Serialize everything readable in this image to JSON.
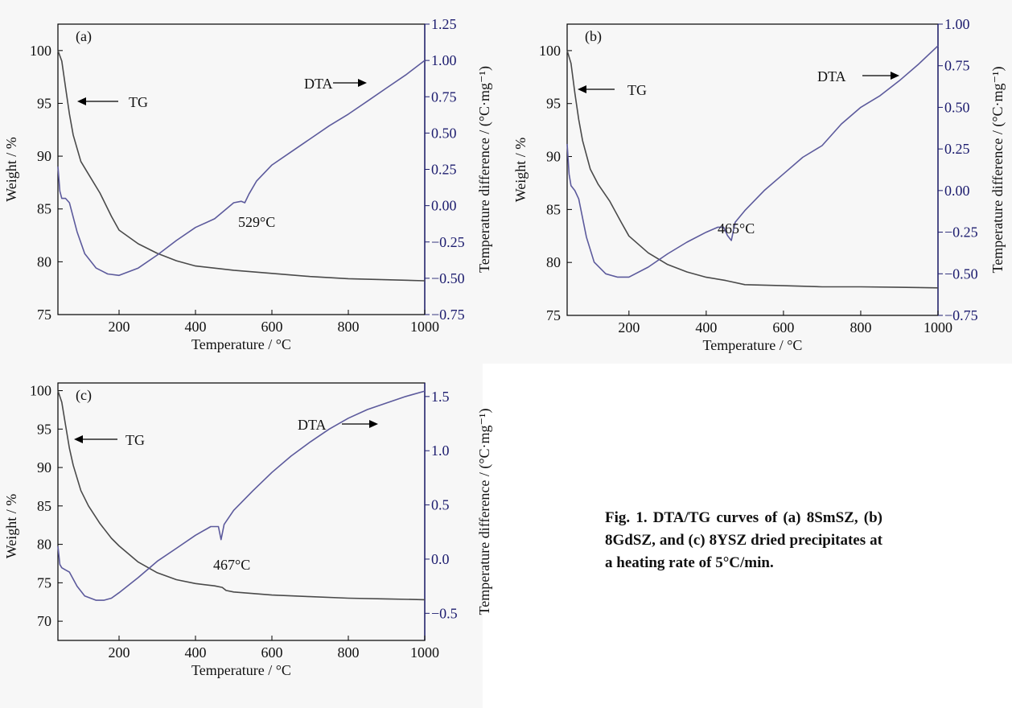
{
  "caption": "Fig. 1.   DTA/TG curves of (a) 8SmSZ, (b) 8GdSZ, and (c) 8YSZ dried precipitates at a heating rate of 5°C/min.",
  "colors": {
    "tg": "#4a4a4a",
    "dta": "#5c5a9c",
    "axis": "#000000",
    "axis_right": "#1c1c6e"
  },
  "chart_data": [
    {
      "type": "line",
      "panel_label": "(a)",
      "xlabel": "Temperature / °C",
      "ylabel": "Weight / %",
      "ylabel_right": "Temperature difference / (°C·mg⁻¹)",
      "xlim": [
        40,
        1000
      ],
      "ylim": [
        75,
        102.5
      ],
      "ylim_right": [
        -0.75,
        1.25
      ],
      "x_ticks": [
        "200",
        "400",
        "600",
        "800",
        "1000"
      ],
      "y_ticks": [
        "75",
        "80",
        "85",
        "90",
        "95",
        "100"
      ],
      "y_right_ticks": [
        "−0.75",
        "−0.50",
        "−0.25",
        "0.00",
        "0.25",
        "0.50",
        "0.75",
        "1.00",
        "1.25"
      ],
      "series": [
        {
          "name": "TG",
          "axis": "left",
          "x": [
            40,
            50,
            60,
            70,
            80,
            100,
            120,
            150,
            180,
            200,
            250,
            300,
            350,
            400,
            500,
            600,
            700,
            800,
            900,
            1000
          ],
          "y": [
            100,
            99,
            96.5,
            94,
            92,
            89.5,
            88.3,
            86.5,
            84.3,
            83,
            81.7,
            80.8,
            80.1,
            79.6,
            79.2,
            78.9,
            78.6,
            78.4,
            78.3,
            78.2
          ]
        },
        {
          "name": "DTA",
          "axis": "right",
          "x": [
            40,
            45,
            50,
            60,
            70,
            90,
            110,
            140,
            170,
            200,
            250,
            300,
            350,
            400,
            450,
            500,
            520,
            529,
            540,
            560,
            600,
            650,
            700,
            750,
            800,
            850,
            900,
            950,
            1000
          ],
          "y": [
            0.27,
            0.1,
            0.05,
            0.05,
            0.02,
            -0.18,
            -0.33,
            -0.43,
            -0.47,
            -0.48,
            -0.43,
            -0.34,
            -0.24,
            -0.15,
            -0.09,
            0.02,
            0.03,
            0.02,
            0.08,
            0.17,
            0.28,
            0.37,
            0.46,
            0.55,
            0.63,
            0.72,
            0.81,
            0.9,
            1.0
          ]
        }
      ],
      "annotations": [
        {
          "text": "TG",
          "arrow": "left"
        },
        {
          "text": "DTA",
          "arrow": "right"
        },
        {
          "text": "529°C"
        }
      ]
    },
    {
      "type": "line",
      "panel_label": "(b)",
      "xlabel": "Temperature / °C",
      "ylabel": "Weight / %",
      "ylabel_right": "Temperature difference / (°C·mg⁻¹)",
      "xlim": [
        40,
        1000
      ],
      "ylim": [
        75,
        102.5
      ],
      "ylim_right": [
        -0.75,
        1.0
      ],
      "x_ticks": [
        "200",
        "400",
        "600",
        "800",
        "1000"
      ],
      "y_ticks": [
        "75",
        "80",
        "85",
        "90",
        "95",
        "100"
      ],
      "y_right_ticks": [
        "−0.75",
        "−0.50",
        "−0.25",
        "0.00",
        "0.25",
        "0.50",
        "0.75",
        "1.00"
      ],
      "series": [
        {
          "name": "TG",
          "axis": "left",
          "x": [
            40,
            50,
            60,
            70,
            80,
            100,
            120,
            150,
            180,
            200,
            250,
            300,
            350,
            400,
            450,
            500,
            600,
            700,
            800,
            900,
            1000
          ],
          "y": [
            100,
            98.8,
            96,
            93.5,
            91.5,
            88.8,
            87.4,
            85.8,
            83.8,
            82.5,
            80.9,
            79.8,
            79.1,
            78.6,
            78.3,
            77.9,
            77.8,
            77.7,
            77.7,
            77.65,
            77.6
          ]
        },
        {
          "name": "DTA",
          "axis": "right",
          "x": [
            40,
            45,
            50,
            60,
            70,
            90,
            110,
            140,
            170,
            200,
            250,
            300,
            350,
            400,
            430,
            445,
            455,
            465,
            475,
            500,
            550,
            600,
            650,
            700,
            750,
            800,
            850,
            900,
            950,
            1000
          ],
          "y": [
            0.28,
            0.1,
            0.03,
            0.0,
            -0.05,
            -0.28,
            -0.43,
            -0.5,
            -0.52,
            -0.52,
            -0.46,
            -0.38,
            -0.31,
            -0.25,
            -0.22,
            -0.22,
            -0.27,
            -0.3,
            -0.19,
            -0.12,
            0.0,
            0.1,
            0.2,
            0.27,
            0.4,
            0.5,
            0.57,
            0.66,
            0.76,
            0.87
          ]
        }
      ],
      "annotations": [
        {
          "text": "TG",
          "arrow": "left"
        },
        {
          "text": "DTA",
          "arrow": "right"
        },
        {
          "text": "465°C"
        }
      ]
    },
    {
      "type": "line",
      "panel_label": "(c)",
      "xlabel": "Temperature / °C",
      "ylabel": "Weight / %",
      "ylabel_right": "Temperature difference / (°C·mg⁻¹)",
      "xlim": [
        40,
        1000
      ],
      "ylim": [
        67.5,
        101
      ],
      "ylim_right": [
        -0.75,
        1.625
      ],
      "x_ticks": [
        "200",
        "400",
        "600",
        "800",
        "1000"
      ],
      "y_ticks": [
        "70",
        "75",
        "80",
        "85",
        "90",
        "95",
        "100"
      ],
      "y_right_ticks": [
        "−0.5",
        "0.0",
        "0.5",
        "1.0",
        "1.5"
      ],
      "series": [
        {
          "name": "TG",
          "axis": "left",
          "x": [
            40,
            50,
            60,
            70,
            80,
            100,
            120,
            150,
            180,
            200,
            250,
            300,
            350,
            400,
            450,
            470,
            480,
            500,
            600,
            700,
            800,
            900,
            1000
          ],
          "y": [
            100,
            98.5,
            95.5,
            92.5,
            90.3,
            87,
            85,
            82.7,
            80.8,
            79.8,
            77.7,
            76.3,
            75.4,
            74.9,
            74.6,
            74.4,
            74.0,
            73.8,
            73.4,
            73.2,
            73.0,
            72.9,
            72.8
          ]
        },
        {
          "name": "DTA",
          "axis": "right",
          "x": [
            40,
            45,
            50,
            60,
            70,
            90,
            110,
            140,
            160,
            180,
            200,
            250,
            300,
            350,
            400,
            440,
            460,
            467,
            475,
            500,
            550,
            600,
            650,
            700,
            750,
            800,
            850,
            900,
            950,
            1000
          ],
          "y": [
            0.12,
            -0.05,
            -0.08,
            -0.1,
            -0.12,
            -0.25,
            -0.34,
            -0.38,
            -0.38,
            -0.36,
            -0.31,
            -0.17,
            -0.02,
            0.1,
            0.22,
            0.3,
            0.3,
            0.18,
            0.32,
            0.45,
            0.63,
            0.8,
            0.95,
            1.08,
            1.2,
            1.3,
            1.38,
            1.44,
            1.5,
            1.55
          ]
        }
      ],
      "annotations": [
        {
          "text": "TG",
          "arrow": "left"
        },
        {
          "text": "DTA",
          "arrow": "right"
        },
        {
          "text": "467°C"
        }
      ]
    }
  ]
}
